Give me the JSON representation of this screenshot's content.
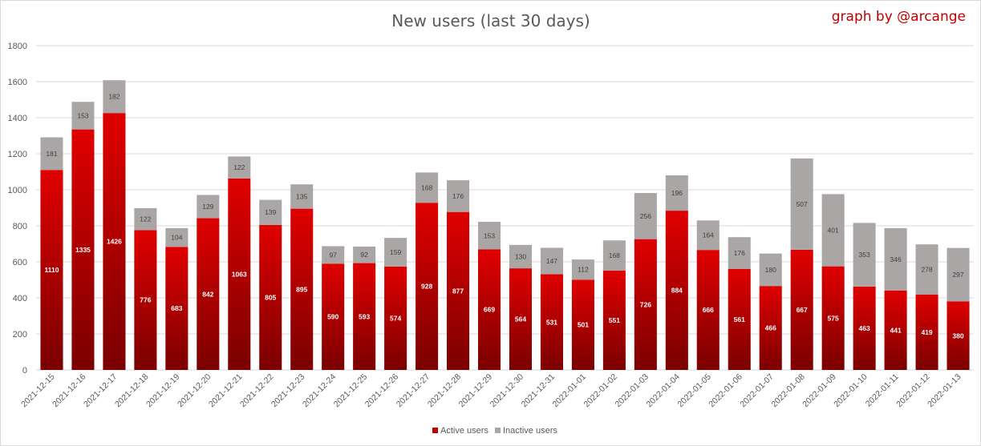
{
  "chart_data": {
    "type": "bar",
    "stacked": true,
    "title": "New users (last 30 days)",
    "credit": "graph by @arcange",
    "ylim": [
      0,
      1800
    ],
    "yticks": [
      0,
      200,
      400,
      600,
      800,
      1000,
      1200,
      1400,
      1600,
      1800
    ],
    "grid": true,
    "legend_position": "bottom",
    "categories": [
      "2021-12-15",
      "2021-12-16",
      "2021-12-17",
      "2021-12-18",
      "2021-12-19",
      "2021-12-20",
      "2021-12-21",
      "2021-12-22",
      "2021-12-23",
      "2021-12-24",
      "2021-12-25",
      "2021-12-26",
      "2021-12-27",
      "2021-12-28",
      "2021-12-29",
      "2021-12-30",
      "2021-12-31",
      "2022-01-01",
      "2022-01-02",
      "2022-01-03",
      "2022-01-04",
      "2022-01-05",
      "2022-01-06",
      "2022-01-07",
      "2022-01-08",
      "2022-01-09",
      "2022-01-10",
      "2022-01-11",
      "2022-01-12",
      "2022-01-13"
    ],
    "series": [
      {
        "name": "Active users",
        "color": "#c00000",
        "values": [
          1110,
          1335,
          1426,
          776,
          683,
          842,
          1063,
          805,
          895,
          590,
          593,
          574,
          928,
          877,
          669,
          564,
          531,
          501,
          551,
          726,
          884,
          666,
          561,
          466,
          667,
          575,
          463,
          441,
          419,
          380
        ]
      },
      {
        "name": "Inactive users",
        "color": "#aaa6a6",
        "values": [
          181,
          153,
          182,
          122,
          104,
          129,
          122,
          139,
          135,
          97,
          92,
          159,
          168,
          176,
          153,
          130,
          147,
          112,
          168,
          256,
          196,
          164,
          176,
          180,
          507,
          401,
          353,
          346,
          278,
          297
        ]
      }
    ]
  }
}
